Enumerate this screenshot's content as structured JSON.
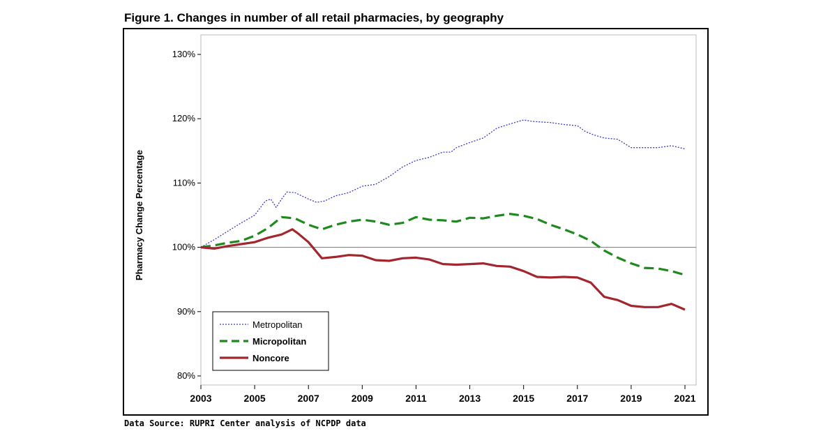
{
  "figure": {
    "title": "Figure 1. Changes in number of all retail pharmacies, by geography",
    "source": "Data Source: RUPRI Center analysis of NCPDP data"
  },
  "chart_data": {
    "type": "line",
    "title": "Figure 1. Changes in number of all retail pharmacies, by geography",
    "xlabel": "",
    "ylabel": "Pharmacy Change Percentage",
    "xlim": [
      2003,
      2021
    ],
    "ylim": [
      80,
      130
    ],
    "x_ticks": [
      "2003",
      "2005",
      "2007",
      "2009",
      "2011",
      "2013",
      "2015",
      "2017",
      "2019",
      "2021"
    ],
    "y_ticks": [
      "80%",
      "90%",
      "100%",
      "110%",
      "120%",
      "130%"
    ],
    "reference_line": 100,
    "grid": false,
    "legend_position": "bottom-left",
    "series": [
      {
        "name": "Metropolitan",
        "color": "#3a3ad0",
        "style": "dotted",
        "x": [
          2003,
          2003.5,
          2004,
          2004.5,
          2005,
          2005.4,
          2005.6,
          2005.8,
          2006,
          2006.2,
          2006.5,
          2007,
          2007.3,
          2007.6,
          2008,
          2008.5,
          2009,
          2009.5,
          2010,
          2010.5,
          2011,
          2011.5,
          2012,
          2012.3,
          2012.5,
          2013,
          2013.5,
          2014,
          2014.5,
          2015,
          2015.3,
          2015.6,
          2016,
          2016.5,
          2017,
          2017.3,
          2017.6,
          2018,
          2018.5,
          2019,
          2019.5,
          2020,
          2020.5,
          2021
        ],
        "values": [
          100,
          101.2,
          102.5,
          103.8,
          105,
          107.2,
          107.5,
          106.2,
          107.5,
          108.6,
          108.5,
          107.5,
          107,
          107.2,
          108,
          108.5,
          109.5,
          109.8,
          111,
          112.5,
          113.5,
          114,
          114.8,
          114.8,
          115.5,
          116.3,
          117,
          118.5,
          119.2,
          119.8,
          119.6,
          119.5,
          119.4,
          119.1,
          118.9,
          118,
          117.5,
          117,
          116.8,
          115.5,
          115.5,
          115.5,
          115.8,
          115.3
        ]
      },
      {
        "name": "Micropolitan",
        "color": "#1e8a1e",
        "style": "dashed",
        "x": [
          2003,
          2003.5,
          2004,
          2004.5,
          2005,
          2005.5,
          2006,
          2006.5,
          2007,
          2007.5,
          2008,
          2008.5,
          2009,
          2009.5,
          2010,
          2010.5,
          2011,
          2011.5,
          2012,
          2012.5,
          2013,
          2013.5,
          2014,
          2014.5,
          2015,
          2015.5,
          2016,
          2016.5,
          2017,
          2017.5,
          2018,
          2018.5,
          2019,
          2019.5,
          2020,
          2020.5,
          2021
        ],
        "values": [
          100,
          100.3,
          100.7,
          101,
          101.8,
          103,
          104.7,
          104.5,
          103.5,
          102.8,
          103.5,
          104,
          104.3,
          104,
          103.5,
          103.8,
          104.7,
          104.3,
          104.2,
          104.0,
          104.6,
          104.5,
          104.9,
          105.2,
          104.9,
          104.4,
          103.5,
          102.8,
          102,
          101,
          99.5,
          98.4,
          97.5,
          96.8,
          96.7,
          96.3,
          95.7
        ]
      },
      {
        "name": "Noncore",
        "color": "#a3262e",
        "style": "solid",
        "x": [
          2003,
          2003.5,
          2004,
          2004.5,
          2005,
          2005.5,
          2006,
          2006.4,
          2006.6,
          2007,
          2007.5,
          2008,
          2008.5,
          2009,
          2009.5,
          2010,
          2010.5,
          2011,
          2011.5,
          2012,
          2012.5,
          2013,
          2013.5,
          2014,
          2014.5,
          2015,
          2015.5,
          2016,
          2016.5,
          2017,
          2017.5,
          2018,
          2018.3,
          2018.5,
          2019,
          2019.5,
          2020,
          2020.5,
          2021
        ],
        "values": [
          100,
          99.8,
          100.2,
          100.5,
          100.8,
          101.5,
          102,
          102.8,
          102.2,
          100.8,
          98.3,
          98.5,
          98.8,
          98.7,
          98,
          97.9,
          98.3,
          98.4,
          98.1,
          97.4,
          97.3,
          97.4,
          97.5,
          97.1,
          97.0,
          96.3,
          95.4,
          95.3,
          95.4,
          95.3,
          94.5,
          92.3,
          92.0,
          91.8,
          90.9,
          90.7,
          90.7,
          91.2,
          90.3
        ]
      }
    ]
  }
}
